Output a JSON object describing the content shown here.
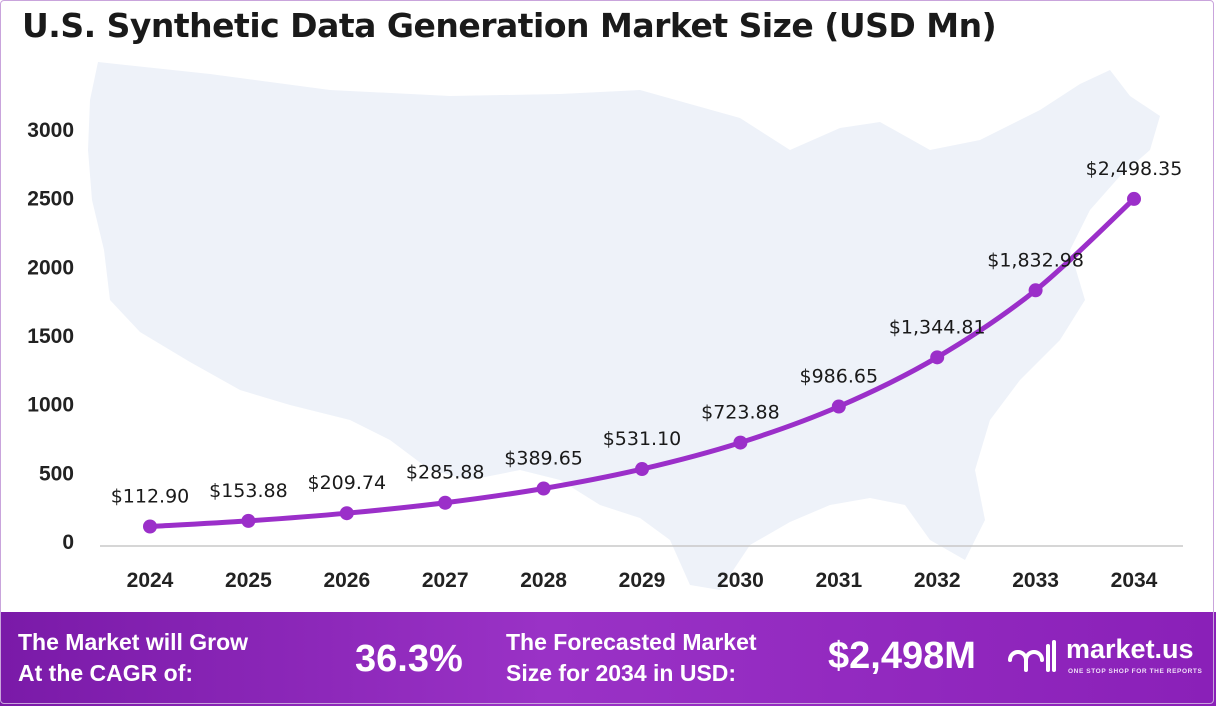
{
  "title": "U.S. Synthetic Data Generation Market Size (USD Mn)",
  "colors": {
    "line": "#9b2fc9",
    "marker": "#9b2fc9",
    "map": "#eef2f9",
    "banner": "#8a20b8"
  },
  "chart_data": {
    "type": "line",
    "title": "U.S. Synthetic Data Generation Market Size (USD Mn)",
    "xlabel": "",
    "ylabel": "",
    "categories": [
      "2024",
      "2025",
      "2026",
      "2027",
      "2028",
      "2029",
      "2030",
      "2031",
      "2032",
      "2033",
      "2034"
    ],
    "values": [
      112.9,
      153.88,
      209.74,
      285.88,
      389.65,
      531.1,
      723.88,
      986.65,
      1344.81,
      1832.98,
      2498.35
    ],
    "data_labels": [
      "$112.90",
      "$153.88",
      "$209.74",
      "$285.88",
      "$389.65",
      "$531.10",
      "$723.88",
      "$986.65",
      "$1,344.81",
      "$1,832.98",
      "$2,498.35"
    ],
    "ylim": [
      0,
      3000
    ],
    "yticks": [
      "0",
      "500",
      "1000",
      "1500",
      "2000",
      "2500",
      "3000"
    ],
    "ytick_values": [
      0,
      500,
      1000,
      1500,
      2000,
      2500,
      3000
    ],
    "grid": false,
    "legend": "none"
  },
  "banner": {
    "cagr_label_line1": "The Market will Grow",
    "cagr_label_line2": "At the CAGR of:",
    "cagr_value": "36.3%",
    "forecast_label_line1": "The Forecasted Market",
    "forecast_label_line2": "Size for 2034 in USD:",
    "forecast_value": "$2,498M",
    "brand_name": "market.us",
    "brand_tagline": "ONE STOP SHOP FOR THE REPORTS"
  }
}
